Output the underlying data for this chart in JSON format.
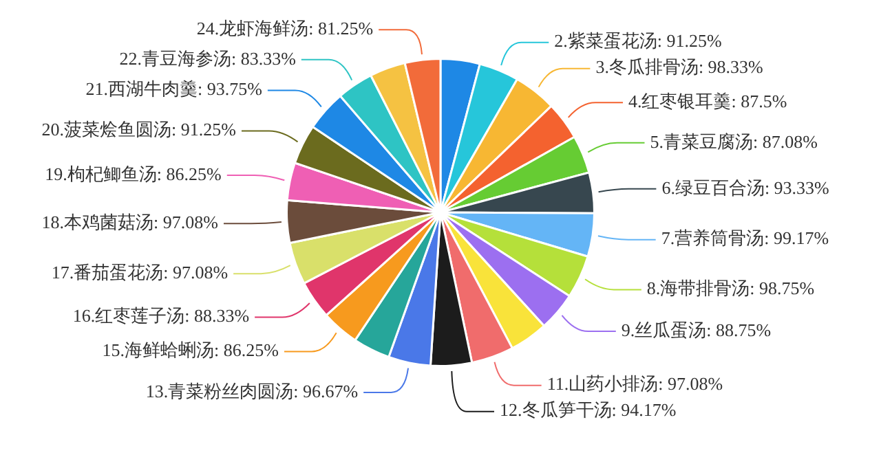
{
  "chart_data": {
    "type": "pie",
    "categories": [
      null,
      "2.紫菜蛋花汤",
      "3.冬瓜排骨汤",
      "4.红枣银耳羹",
      "5.青菜豆腐汤",
      "6.绿豆百合汤",
      "7.营养筒骨汤",
      "8.海带排骨汤",
      "9.丝瓜蛋汤",
      null,
      "11.山药小排汤",
      "12.冬瓜笋干汤",
      "13.青菜粉丝肉圆汤",
      null,
      "15.海鲜蛤蜊汤",
      "16.红枣莲子汤",
      "17.番茄蛋花汤",
      "18.本鸡菌菇汤",
      "19.枸杞鲫鱼汤",
      "20.菠菜烩鱼圆汤",
      "21.西湖牛肉羹",
      "22.青豆海参汤",
      null,
      "24.龙虾海鲜汤"
    ],
    "values": [
      90,
      91.25,
      98.33,
      87.5,
      87.08,
      93.33,
      99.17,
      98.75,
      88.75,
      88,
      97.08,
      94.17,
      96.67,
      85,
      86.25,
      88.33,
      97.08,
      97.08,
      86.25,
      91.25,
      93.75,
      83.33,
      82,
      81.25
    ],
    "value_labels": [
      null,
      "91.25%",
      "98.33%",
      "87.5%",
      "87.08%",
      "93.33%",
      "99.17%",
      "98.75%",
      "88.75%",
      null,
      "97.08%",
      "94.17%",
      "96.67%",
      null,
      "86.25%",
      "88.33%",
      "97.08%",
      "97.08%",
      "86.25%",
      "91.25%",
      "93.75%",
      "83.33%",
      null,
      "81.25%"
    ],
    "colors": [
      "#1e88e5",
      "#26c6da",
      "#f7b733",
      "#f4622f",
      "#66cc33",
      "#37474f",
      "#64b5f6",
      "#b5e03a",
      "#9c6ff0",
      "#f9e33a",
      "#f06c6c",
      "#1c1c1c",
      "#4a78e8",
      "#26a69a",
      "#f79a1e",
      "#e0356b",
      "#d9e06a",
      "#6b4c3b",
      "#ef5fb4",
      "#6b6b1e",
      "#1e88e5",
      "#2ec4c4",
      "#f5c242",
      "#f26b3a"
    ],
    "legend": false
  }
}
